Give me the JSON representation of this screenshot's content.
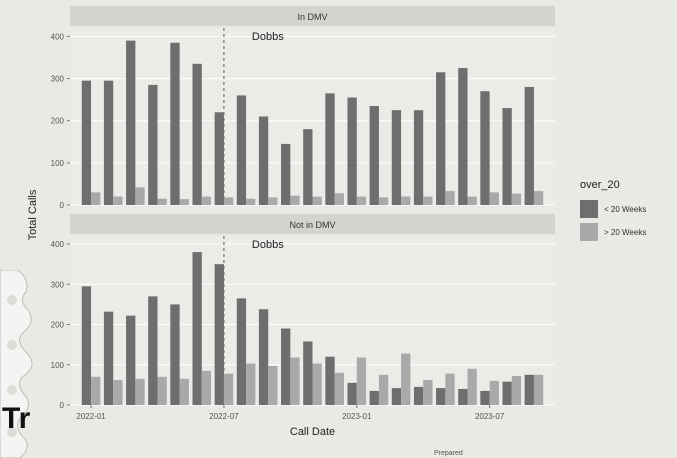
{
  "chart_data": {
    "type": "bar",
    "xlabel": "Call Date",
    "ylabel": "Total Calls",
    "ylim": [
      0,
      420
    ],
    "y_ticks": [
      "0",
      "100",
      "200",
      "300",
      "400"
    ],
    "x_tick_labels": [
      "2022-01",
      "2022-07",
      "2023-01",
      "2023-07"
    ],
    "grid": true,
    "legend": {
      "title": "over_20",
      "position": "right",
      "entries": [
        {
          "label": "< 20 Weeks",
          "color": "#6e6e6e"
        },
        {
          "label": "> 20 Weeks",
          "color": "#a9a9a9"
        }
      ]
    },
    "annotation": "Dobbs",
    "annotation_x_index": 6,
    "panels": [
      {
        "strip": "In DMV",
        "series": [
          {
            "name": "< 20 Weeks",
            "values": [
              295,
              295,
              390,
              285,
              385,
              335,
              220,
              260,
              210,
              145,
              180,
              265,
              255,
              235,
              225,
              225,
              315,
              325,
              270,
              230,
              280
            ]
          },
          {
            "name": "> 20 Weeks",
            "values": [
              30,
              20,
              42,
              15,
              14,
              20,
              18,
              15,
              18,
              22,
              20,
              28,
              20,
              18,
              20,
              20,
              33,
              20,
              30,
              27,
              33
            ]
          }
        ]
      },
      {
        "strip": "Not in DMV",
        "series": [
          {
            "name": "< 20 Weeks",
            "values": [
              295,
              232,
              222,
              270,
              250,
              380,
              350,
              265,
              238,
              190,
              158,
              120,
              55,
              35,
              42,
              45,
              42,
              40,
              35,
              58,
              75
            ]
          },
          {
            "name": "> 20 Weeks",
            "values": [
              70,
              62,
              65,
              70,
              65,
              85,
              78,
              103,
              97,
              118,
              103,
              80,
              118,
              75,
              128,
              62,
              78,
              90,
              60,
              72,
              75
            ]
          }
        ]
      }
    ]
  },
  "footer_fragment": "Tr",
  "source_fragment": "Prepared"
}
